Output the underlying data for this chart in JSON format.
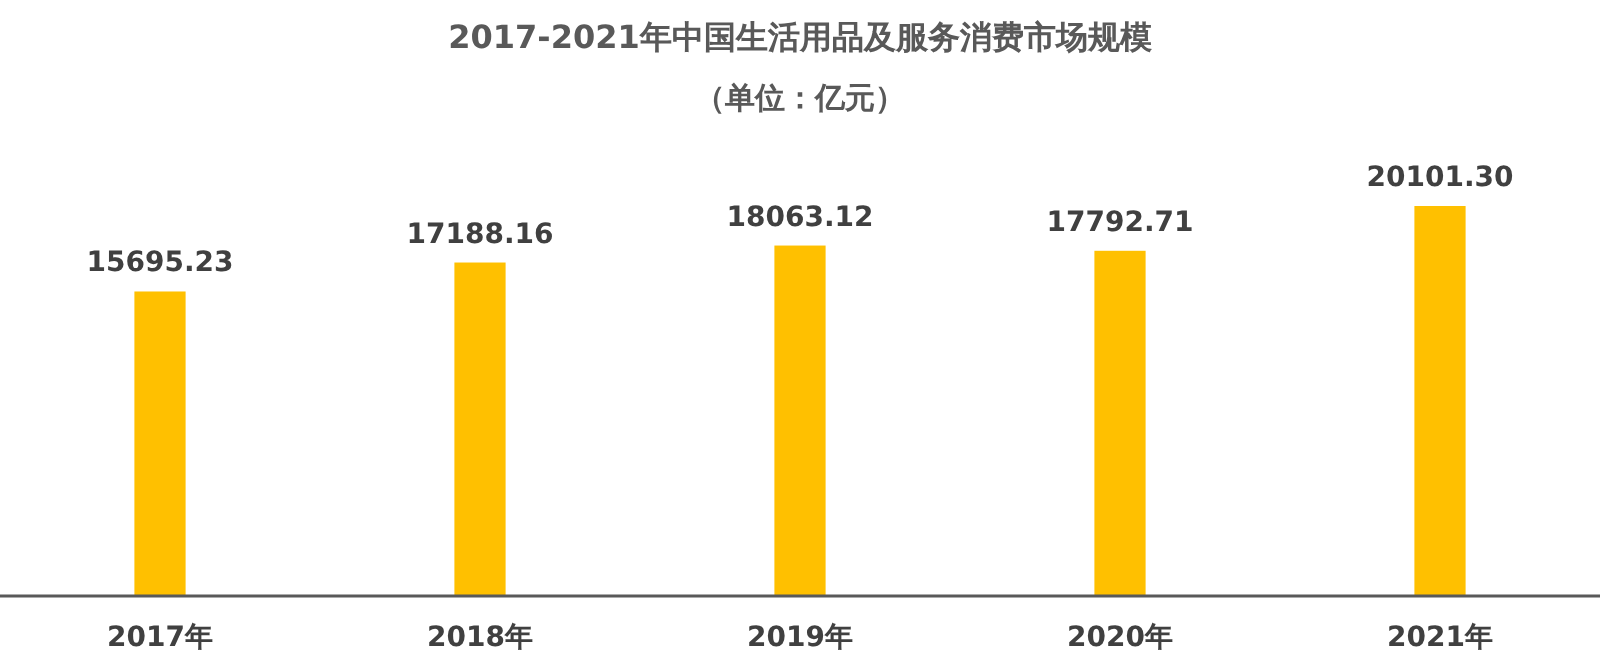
{
  "chart_data": {
    "type": "bar",
    "title": "2017-2021年中国生活用品及服务消费市场规模",
    "subtitle": "（单位：亿元）",
    "categories": [
      "2017年",
      "2018年",
      "2019年",
      "2020年",
      "2021年"
    ],
    "values": [
      15695.23,
      17188.16,
      18063.12,
      17792.71,
      20101.3
    ],
    "value_labels": [
      "15695.23",
      "17188.16",
      "18063.12",
      "17792.71",
      "20101.30"
    ],
    "color": "#ffc000",
    "tick_labels": "x"
  }
}
